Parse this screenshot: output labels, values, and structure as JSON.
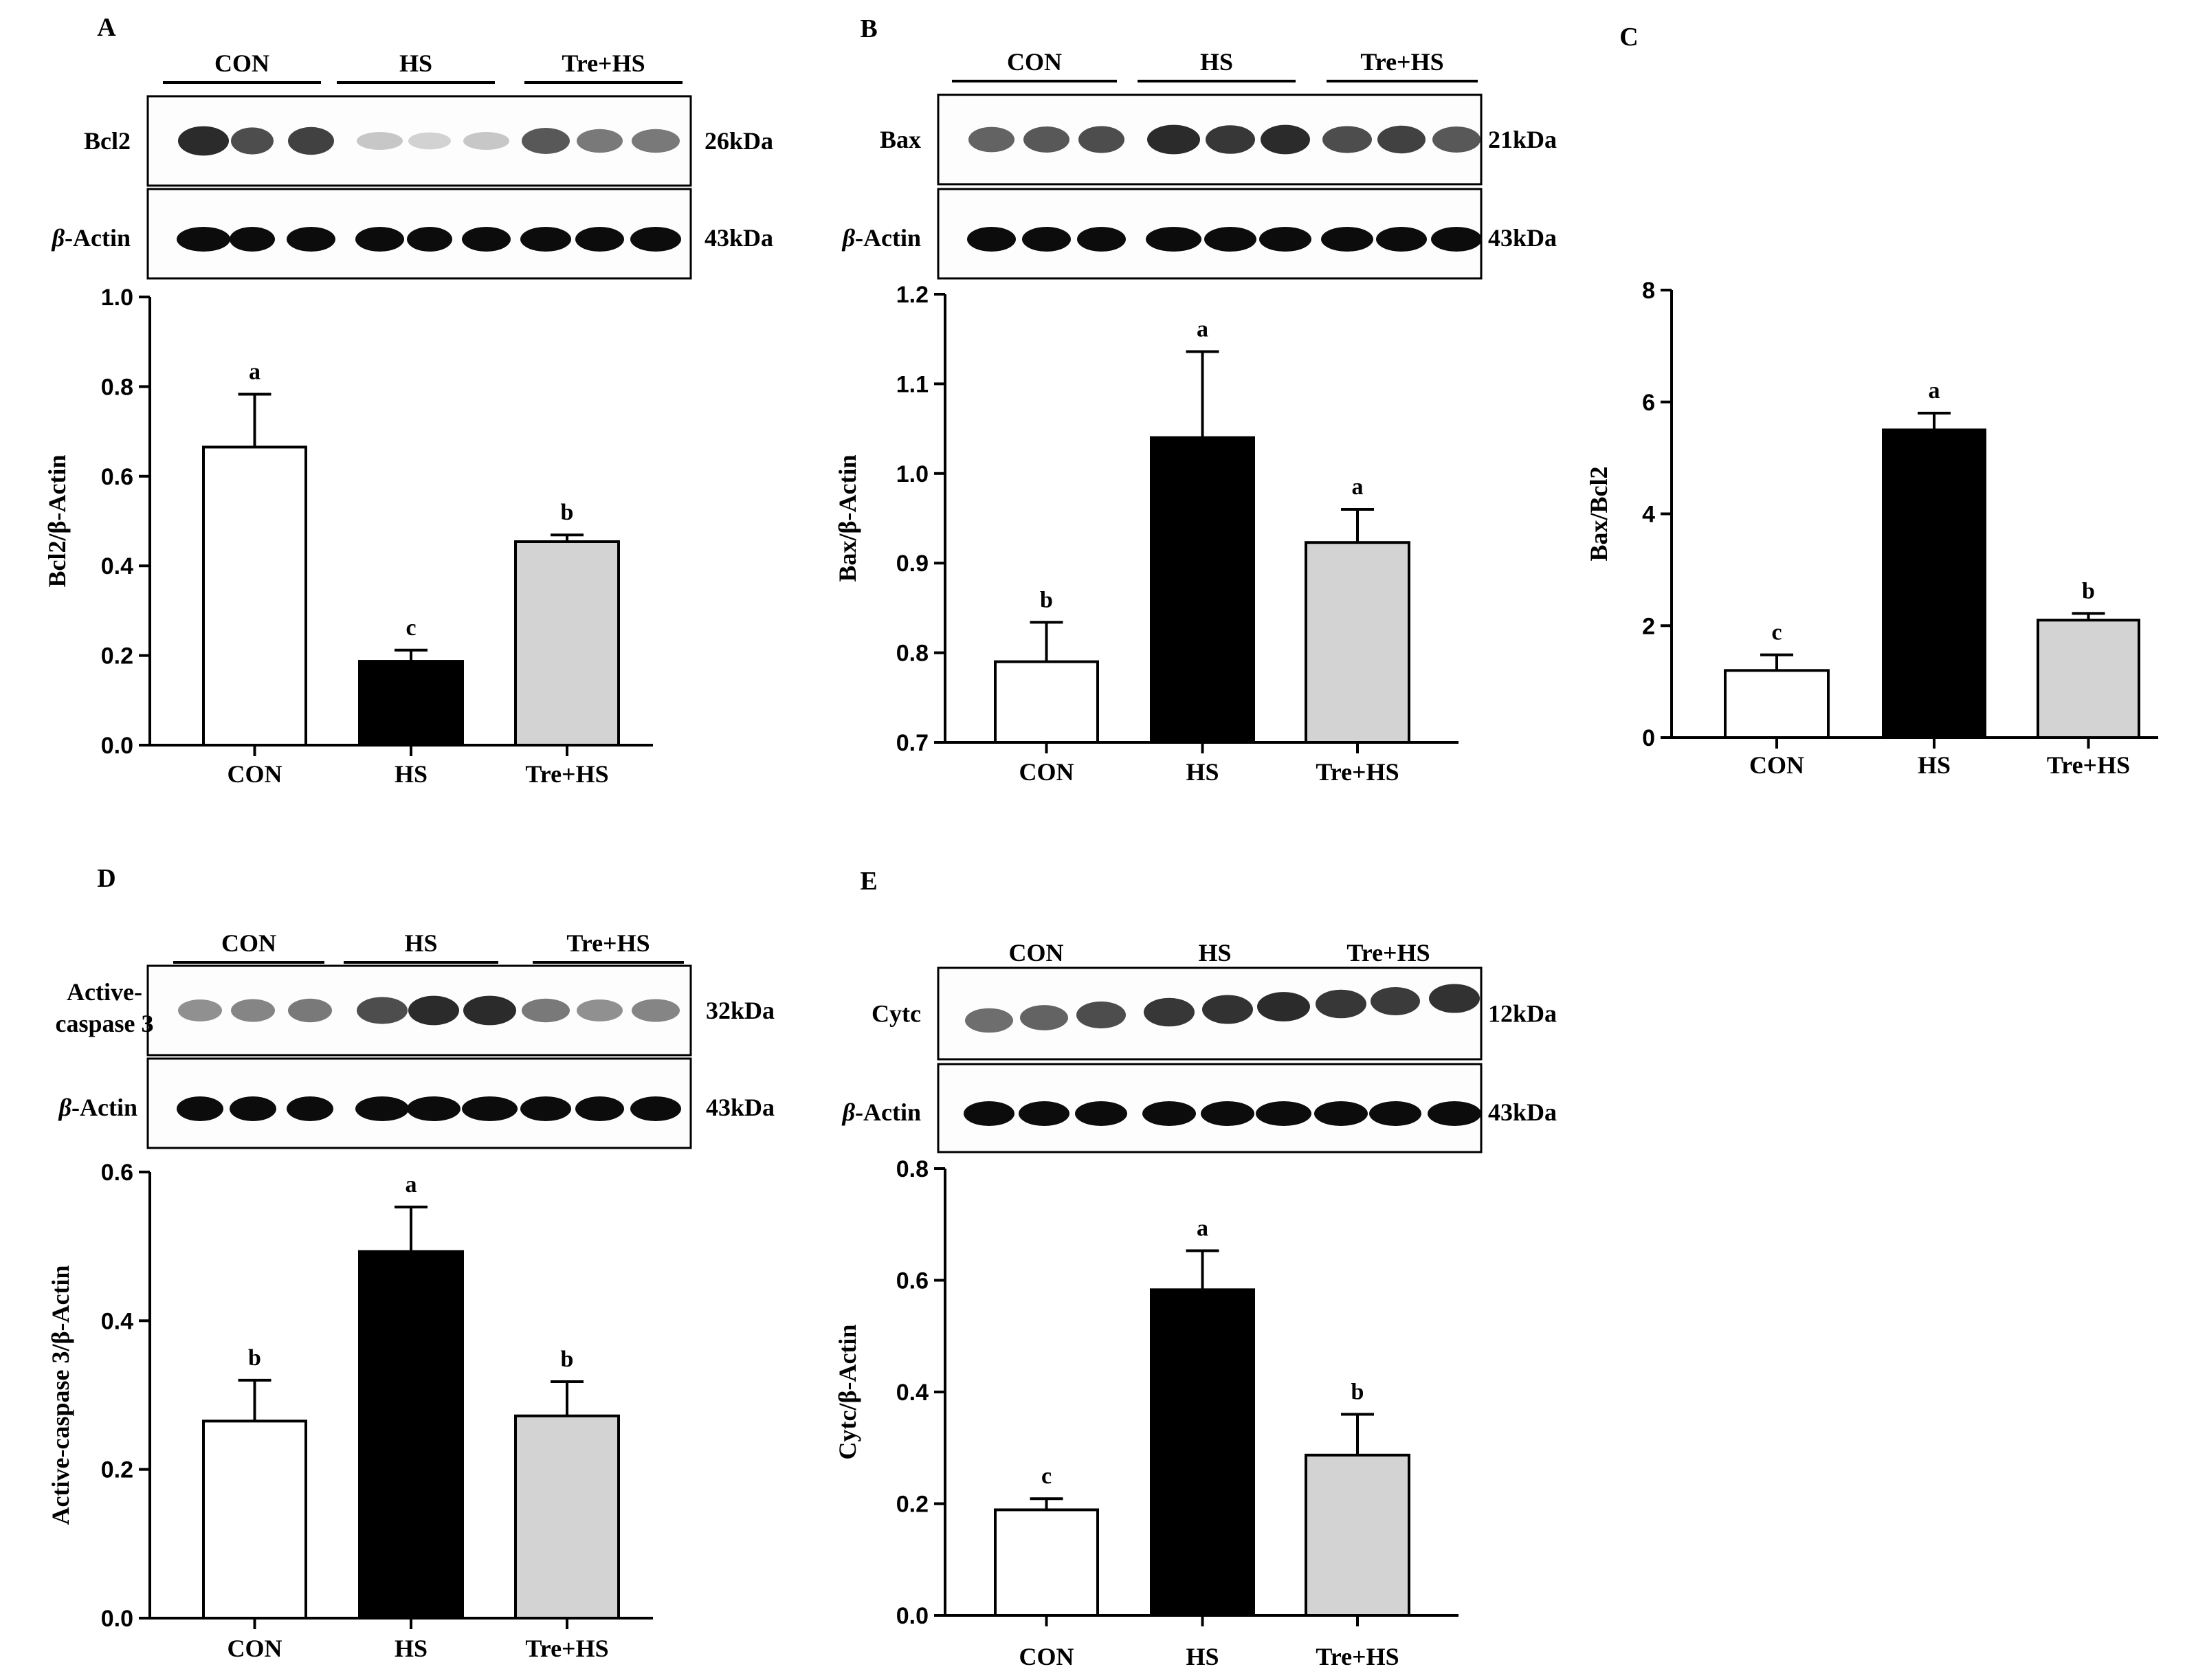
{
  "figure": {
    "panel_letters": [
      "A",
      "B",
      "C",
      "D",
      "E"
    ],
    "groups": [
      "CON",
      "HS",
      "Tre+HS"
    ],
    "actin_label": "-Actin",
    "beta_symbol": "β",
    "bar_colors": [
      "#ffffff",
      "#000000",
      "#d3d3d3"
    ]
  },
  "chart_data": [
    {
      "panel": "A",
      "type": "bar",
      "blot": {
        "protein_label": "Bcl2",
        "protein_kda": "26kDa",
        "actin_kda": "43kDa",
        "intensity": [
          0.95,
          0.8,
          0.85,
          0.25,
          0.2,
          0.25,
          0.75,
          0.6,
          0.6
        ]
      },
      "categories": [
        "CON",
        "HS",
        "Tre+HS"
      ],
      "values": [
        0.665,
        0.187,
        0.454
      ],
      "errors": [
        0.118,
        0.025,
        0.015
      ],
      "letters": [
        "a",
        "c",
        "b"
      ],
      "ylabel": "Bcl2/β-Actin",
      "ylim": [
        0,
        1.0
      ],
      "yticks": [
        "0.0",
        "0.2",
        "0.4",
        "0.6",
        "0.8",
        "1.0"
      ]
    },
    {
      "panel": "B",
      "type": "bar",
      "blot": {
        "protein_label": "Bax",
        "protein_kda": "21kDa",
        "actin_kda": "43kDa",
        "intensity": [
          0.7,
          0.75,
          0.8,
          0.95,
          0.9,
          0.95,
          0.8,
          0.85,
          0.75
        ]
      },
      "categories": [
        "CON",
        "HS",
        "Tre+HS"
      ],
      "values": [
        0.79,
        1.04,
        0.923
      ],
      "errors": [
        0.044,
        0.096,
        0.037
      ],
      "letters": [
        "b",
        "a",
        "a"
      ],
      "ylabel": "Bax/β-Actin",
      "ylim": [
        0.7,
        1.2
      ],
      "yticks": [
        "0.7",
        "0.8",
        "0.9",
        "1.0",
        "1.1",
        "1.2"
      ]
    },
    {
      "panel": "C",
      "type": "bar",
      "categories": [
        "CON",
        "HS",
        "Tre+HS"
      ],
      "values": [
        1.2,
        5.5,
        2.1
      ],
      "errors": [
        0.28,
        0.3,
        0.12
      ],
      "letters": [
        "c",
        "a",
        "b"
      ],
      "ylabel": "Bax/Bcl2",
      "ylim": [
        0,
        8
      ],
      "yticks": [
        "0",
        "2",
        "4",
        "6",
        "8"
      ]
    },
    {
      "panel": "D",
      "type": "bar",
      "blot": {
        "protein_label_lines": [
          "Active-",
          "caspase 3"
        ],
        "protein_kda": "32kDa",
        "actin_kda": "43kDa",
        "intensity": [
          0.5,
          0.55,
          0.6,
          0.8,
          0.95,
          0.95,
          0.6,
          0.5,
          0.55
        ]
      },
      "categories": [
        "CON",
        "HS",
        "Tre+HS"
      ],
      "values": [
        0.265,
        0.493,
        0.272
      ],
      "errors": [
        0.055,
        0.06,
        0.046
      ],
      "letters": [
        "b",
        "a",
        "b"
      ],
      "ylabel": "Active-caspase 3/β-Actin",
      "ylim": [
        0,
        0.6
      ],
      "yticks": [
        "0.0",
        "0.2",
        "0.4",
        "0.6"
      ]
    },
    {
      "panel": "E",
      "type": "bar",
      "blot": {
        "protein_label": "Cytc",
        "protein_kda": "12kDa",
        "actin_kda": "43kDa",
        "intensity": [
          0.65,
          0.7,
          0.8,
          0.9,
          0.92,
          0.95,
          0.9,
          0.88,
          0.92
        ]
      },
      "categories": [
        "CON",
        "HS",
        "Tre+HS"
      ],
      "values": [
        0.189,
        0.583,
        0.287
      ],
      "errors": [
        0.02,
        0.07,
        0.073
      ],
      "letters": [
        "c",
        "a",
        "b"
      ],
      "ylabel": "Cytc/β-Actin",
      "ylim": [
        0,
        0.8
      ],
      "yticks": [
        "0.0",
        "0.2",
        "0.4",
        "0.6",
        "0.8"
      ]
    }
  ]
}
